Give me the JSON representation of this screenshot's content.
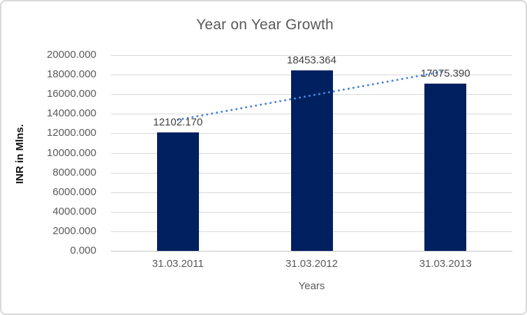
{
  "chart_data": {
    "type": "bar",
    "title": "Year on Year Growth",
    "xlabel": "Years",
    "ylabel": "INR in Mlns.",
    "categories": [
      "31.03.2011",
      "31.03.2012",
      "31.03.2013"
    ],
    "values": [
      12102.17,
      18453.364,
      17075.39
    ],
    "value_labels": [
      "12102.170",
      "18453.364",
      "17075.390"
    ],
    "ylim": [
      0,
      20000
    ],
    "ytick_step": 2000,
    "ytick_labels": [
      "20000.000",
      "18000.000",
      "16000.000",
      "14000.000",
      "12000.000",
      "10000.000",
      "8000.000",
      "6000.000",
      "4000.000",
      "2000.000",
      "0.000"
    ],
    "grid": true,
    "legend": "none",
    "trendline": {
      "type": "linear",
      "dash_style": "round-dot",
      "color": "#4A86D8"
    },
    "colors": {
      "bar_fill": "#002060",
      "gridline": "#D9D9D9",
      "axis_line": "#C6C6C6",
      "tick_text": "#595959",
      "title_text": "#595959",
      "data_label_text": "#404040",
      "frame_border": "#D9D9D9",
      "background": "#FFFFFF"
    }
  }
}
